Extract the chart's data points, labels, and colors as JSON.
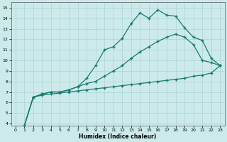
{
  "xlabel": "Humidex (Indice chaleur)",
  "background_color": "#cceaea",
  "grid_color": "#aad4d4",
  "line_color": "#1a7a6e",
  "xlim": [
    -0.5,
    23.5
  ],
  "ylim": [
    3.8,
    15.5
  ],
  "xticks": [
    0,
    1,
    2,
    3,
    4,
    5,
    6,
    7,
    8,
    9,
    10,
    11,
    12,
    13,
    14,
    15,
    16,
    17,
    18,
    19,
    20,
    21,
    22,
    23
  ],
  "yticks": [
    4,
    5,
    6,
    7,
    8,
    9,
    10,
    11,
    12,
    13,
    14,
    15
  ],
  "line1_x": [
    1,
    2,
    3,
    4,
    5,
    6,
    7,
    8,
    9,
    10,
    11,
    12,
    13,
    14,
    15,
    16,
    17,
    18,
    19,
    20,
    21,
    22,
    23
  ],
  "line1_y": [
    3.8,
    6.5,
    6.8,
    7.0,
    7.0,
    7.2,
    7.5,
    8.3,
    9.5,
    11.0,
    11.3,
    12.1,
    13.5,
    14.5,
    14.0,
    14.8,
    14.3,
    14.2,
    13.1,
    12.2,
    11.9,
    10.2,
    9.5
  ],
  "line2_x": [
    1,
    2,
    3,
    4,
    5,
    6,
    7,
    8,
    9,
    10,
    11,
    12,
    13,
    14,
    15,
    16,
    17,
    18,
    19,
    20,
    21,
    22,
    23
  ],
  "line2_y": [
    3.8,
    6.5,
    6.8,
    7.0,
    7.0,
    7.2,
    7.5,
    7.8,
    8.0,
    8.5,
    9.0,
    9.5,
    10.2,
    10.8,
    11.3,
    11.8,
    12.2,
    12.5,
    12.2,
    11.5,
    10.0,
    9.8,
    9.5
  ],
  "line3_x": [
    1,
    2,
    3,
    4,
    5,
    6,
    7,
    8,
    9,
    10,
    11,
    12,
    13,
    14,
    15,
    16,
    17,
    18,
    19,
    20,
    21,
    22,
    23
  ],
  "line3_y": [
    3.8,
    6.5,
    6.7,
    6.8,
    6.9,
    7.0,
    7.1,
    7.2,
    7.3,
    7.4,
    7.5,
    7.6,
    7.7,
    7.8,
    7.9,
    8.0,
    8.1,
    8.2,
    8.3,
    8.5,
    8.6,
    8.8,
    9.5
  ],
  "marker": "+",
  "markersize": 3.5,
  "linewidth": 0.9
}
